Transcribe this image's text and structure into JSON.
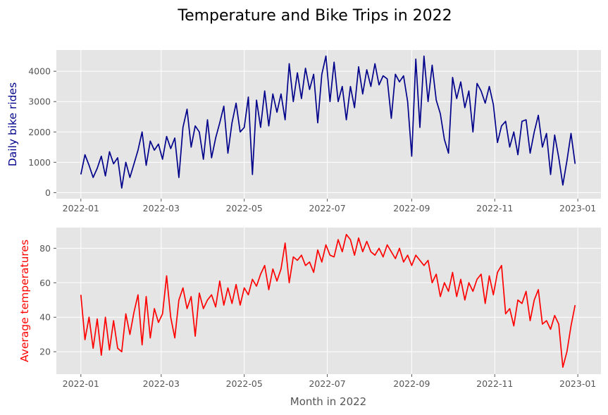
{
  "chart_data": {
    "title": "Temperature and Bike Trips in 2022",
    "x_tick_labels": [
      "2022-01",
      "2022-03",
      "2022-05",
      "2022-07",
      "2022-09",
      "2022-11",
      "2023-01"
    ],
    "x_tick_dates": [
      "2022-01-01",
      "2022-03-01",
      "2022-05-01",
      "2022-07-01",
      "2022-09-01",
      "2022-11-01",
      "2023-01-01"
    ],
    "xlim": [
      "2021-12-14",
      "2023-01-18"
    ],
    "xlabel": "Month in 2022",
    "grid": true,
    "panels": [
      {
        "type": "line",
        "ylabel": "Daily bike rides",
        "ylabel_color": "#00008b",
        "color": "#00008b",
        "ylim": [
          -200,
          4700
        ],
        "y_ticks": [
          0,
          1000,
          2000,
          3000,
          4000
        ],
        "series": {
          "x": [
            "2022-01-01",
            "2022-01-04",
            "2022-01-07",
            "2022-01-10",
            "2022-01-13",
            "2022-01-16",
            "2022-01-19",
            "2022-01-22",
            "2022-01-25",
            "2022-01-28",
            "2022-01-31",
            "2022-02-03",
            "2022-02-06",
            "2022-02-09",
            "2022-02-12",
            "2022-02-15",
            "2022-02-18",
            "2022-02-21",
            "2022-02-24",
            "2022-02-27",
            "2022-03-02",
            "2022-03-05",
            "2022-03-08",
            "2022-03-11",
            "2022-03-14",
            "2022-03-17",
            "2022-03-20",
            "2022-03-23",
            "2022-03-26",
            "2022-03-29",
            "2022-04-01",
            "2022-04-04",
            "2022-04-07",
            "2022-04-10",
            "2022-04-13",
            "2022-04-16",
            "2022-04-19",
            "2022-04-22",
            "2022-04-25",
            "2022-04-28",
            "2022-05-01",
            "2022-05-04",
            "2022-05-07",
            "2022-05-10",
            "2022-05-13",
            "2022-05-16",
            "2022-05-19",
            "2022-05-22",
            "2022-05-25",
            "2022-05-28",
            "2022-05-31",
            "2022-06-03",
            "2022-06-06",
            "2022-06-09",
            "2022-06-12",
            "2022-06-15",
            "2022-06-18",
            "2022-06-21",
            "2022-06-24",
            "2022-06-27",
            "2022-06-30",
            "2022-07-03",
            "2022-07-06",
            "2022-07-09",
            "2022-07-12",
            "2022-07-15",
            "2022-07-18",
            "2022-07-21",
            "2022-07-24",
            "2022-07-27",
            "2022-07-30",
            "2022-08-02",
            "2022-08-05",
            "2022-08-08",
            "2022-08-11",
            "2022-08-14",
            "2022-08-17",
            "2022-08-20",
            "2022-08-23",
            "2022-08-26",
            "2022-08-29",
            "2022-09-01",
            "2022-09-04",
            "2022-09-07",
            "2022-09-10",
            "2022-09-13",
            "2022-09-16",
            "2022-09-19",
            "2022-09-22",
            "2022-09-25",
            "2022-09-28",
            "2022-10-01",
            "2022-10-04",
            "2022-10-07",
            "2022-10-10",
            "2022-10-13",
            "2022-10-16",
            "2022-10-19",
            "2022-10-22",
            "2022-10-25",
            "2022-10-28",
            "2022-10-31",
            "2022-11-03",
            "2022-11-06",
            "2022-11-09",
            "2022-11-12",
            "2022-11-15",
            "2022-11-18",
            "2022-11-21",
            "2022-11-24",
            "2022-11-27",
            "2022-11-30",
            "2022-12-03",
            "2022-12-06",
            "2022-12-09",
            "2022-12-12",
            "2022-12-15",
            "2022-12-18",
            "2022-12-21",
            "2022-12-24",
            "2022-12-27",
            "2022-12-30"
          ],
          "values": [
            600,
            1250,
            900,
            500,
            800,
            1200,
            550,
            1350,
            950,
            1150,
            150,
            1000,
            500,
            950,
            1400,
            2000,
            900,
            1700,
            1400,
            1600,
            1100,
            1850,
            1450,
            1800,
            500,
            2150,
            2750,
            1500,
            2200,
            2000,
            1100,
            2400,
            1150,
            1800,
            2300,
            2850,
            1300,
            2300,
            2950,
            2000,
            2150,
            3150,
            600,
            3050,
            2150,
            3350,
            2200,
            3250,
            2650,
            3250,
            2400,
            4250,
            3000,
            3950,
            3100,
            4100,
            3400,
            3900,
            2300,
            3900,
            4500,
            3000,
            4300,
            3000,
            3500,
            2400,
            3500,
            2800,
            4150,
            3250,
            4050,
            3500,
            4250,
            3550,
            3850,
            3750,
            2450,
            3900,
            3650,
            3850,
            3000,
            1200,
            4400,
            2150,
            4500,
            3000,
            4200,
            3050,
            2600,
            1750,
            1300,
            3800,
            3100,
            3650,
            2800,
            3350,
            2000,
            3600,
            3350,
            2950,
            3500,
            2900,
            1650,
            2200,
            2350,
            1500,
            2000,
            1250,
            2350,
            2400,
            1300,
            2000,
            2550,
            1500,
            1950,
            600,
            1900,
            1150,
            250,
            1050,
            1950,
            950
          ]
        }
      },
      {
        "type": "line",
        "ylabel": "Average temperatures",
        "ylabel_color": "#ff0000",
        "color": "#ff0000",
        "ylim": [
          7,
          92
        ],
        "y_ticks": [
          20,
          40,
          60,
          80
        ],
        "series": {
          "x": [
            "2022-01-01",
            "2022-01-04",
            "2022-01-07",
            "2022-01-10",
            "2022-01-13",
            "2022-01-16",
            "2022-01-19",
            "2022-01-22",
            "2022-01-25",
            "2022-01-28",
            "2022-01-31",
            "2022-02-03",
            "2022-02-06",
            "2022-02-09",
            "2022-02-12",
            "2022-02-15",
            "2022-02-18",
            "2022-02-21",
            "2022-02-24",
            "2022-02-27",
            "2022-03-02",
            "2022-03-05",
            "2022-03-08",
            "2022-03-11",
            "2022-03-14",
            "2022-03-17",
            "2022-03-20",
            "2022-03-23",
            "2022-03-26",
            "2022-03-29",
            "2022-04-01",
            "2022-04-04",
            "2022-04-07",
            "2022-04-10",
            "2022-04-13",
            "2022-04-16",
            "2022-04-19",
            "2022-04-22",
            "2022-04-25",
            "2022-04-28",
            "2022-05-01",
            "2022-05-04",
            "2022-05-07",
            "2022-05-10",
            "2022-05-13",
            "2022-05-16",
            "2022-05-19",
            "2022-05-22",
            "2022-05-25",
            "2022-05-28",
            "2022-05-31",
            "2022-06-03",
            "2022-06-06",
            "2022-06-09",
            "2022-06-12",
            "2022-06-15",
            "2022-06-18",
            "2022-06-21",
            "2022-06-24",
            "2022-06-27",
            "2022-06-30",
            "2022-07-03",
            "2022-07-06",
            "2022-07-09",
            "2022-07-12",
            "2022-07-15",
            "2022-07-18",
            "2022-07-21",
            "2022-07-24",
            "2022-07-27",
            "2022-07-30",
            "2022-08-02",
            "2022-08-05",
            "2022-08-08",
            "2022-08-11",
            "2022-08-14",
            "2022-08-17",
            "2022-08-20",
            "2022-08-23",
            "2022-08-26",
            "2022-08-29",
            "2022-09-01",
            "2022-09-04",
            "2022-09-07",
            "2022-09-10",
            "2022-09-13",
            "2022-09-16",
            "2022-09-19",
            "2022-09-22",
            "2022-09-25",
            "2022-09-28",
            "2022-10-01",
            "2022-10-04",
            "2022-10-07",
            "2022-10-10",
            "2022-10-13",
            "2022-10-16",
            "2022-10-19",
            "2022-10-22",
            "2022-10-25",
            "2022-10-28",
            "2022-10-31",
            "2022-11-03",
            "2022-11-06",
            "2022-11-09",
            "2022-11-12",
            "2022-11-15",
            "2022-11-18",
            "2022-11-21",
            "2022-11-24",
            "2022-11-27",
            "2022-11-30",
            "2022-12-03",
            "2022-12-06",
            "2022-12-09",
            "2022-12-12",
            "2022-12-15",
            "2022-12-18",
            "2022-12-21",
            "2022-12-24",
            "2022-12-27",
            "2022-12-30"
          ],
          "values": [
            53,
            27,
            40,
            22,
            39,
            18,
            40,
            21,
            38,
            22,
            20,
            42,
            30,
            43,
            53,
            24,
            52,
            28,
            45,
            37,
            42,
            64,
            40,
            28,
            50,
            57,
            45,
            52,
            29,
            54,
            45,
            50,
            53,
            46,
            61,
            47,
            57,
            48,
            59,
            47,
            57,
            53,
            62,
            58,
            65,
            70,
            56,
            68,
            61,
            68,
            83,
            60,
            75,
            73,
            76,
            70,
            72,
            66,
            79,
            72,
            82,
            76,
            75,
            85,
            78,
            88,
            85,
            76,
            86,
            78,
            84,
            78,
            76,
            80,
            75,
            82,
            78,
            74,
            80,
            72,
            76,
            70,
            76,
            73,
            70,
            73,
            60,
            65,
            52,
            60,
            55,
            66,
            52,
            62,
            50,
            60,
            55,
            62,
            65,
            48,
            64,
            53,
            66,
            70,
            42,
            45,
            35,
            50,
            48,
            55,
            38,
            50,
            56,
            36,
            38,
            33,
            41,
            36,
            11,
            20,
            35,
            47
          ]
        }
      }
    ]
  }
}
